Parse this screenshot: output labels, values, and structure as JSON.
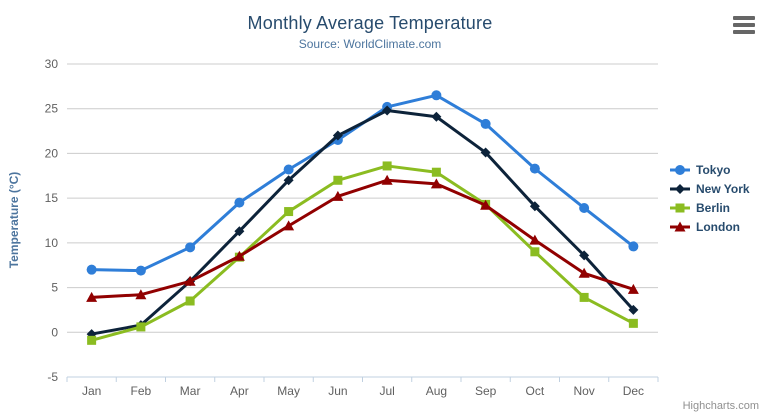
{
  "header": {
    "title": "Monthly Average Temperature",
    "subtitle": "Source: WorldClimate.com"
  },
  "y_axis": {
    "title": "Temperature (°C)",
    "tick_labels": [
      "30",
      "25",
      "20",
      "15",
      "10",
      "5",
      "0",
      "-5"
    ]
  },
  "x_axis": {
    "categories": [
      "Jan",
      "Feb",
      "Mar",
      "Apr",
      "May",
      "Jun",
      "Jul",
      "Aug",
      "Sep",
      "Oct",
      "Nov",
      "Dec"
    ]
  },
  "export_menu": {
    "icon": "hamburger-menu-icon"
  },
  "credits": {
    "label": "Highcharts.com"
  },
  "colors": {
    "title_text": "#274b6d",
    "subtitle_text": "#4d759e",
    "axis_label_text": "#606060",
    "grid_line": "#cccccc",
    "axis_line": "#c0d0e0",
    "background": "#ffffff"
  },
  "chart_data": {
    "type": "line",
    "title": "Monthly Average Temperature",
    "subtitle": "Source: WorldClimate.com",
    "xlabel": "",
    "ylabel": "Temperature (°C)",
    "ylim": [
      -5,
      30
    ],
    "ytick_step": 5,
    "grid": true,
    "legend_position": "right",
    "categories": [
      "Jan",
      "Feb",
      "Mar",
      "Apr",
      "May",
      "Jun",
      "Jul",
      "Aug",
      "Sep",
      "Oct",
      "Nov",
      "Dec"
    ],
    "series": [
      {
        "name": "Tokyo",
        "color": "#2f7ed8",
        "marker": "circle",
        "values": [
          7.0,
          6.9,
          9.5,
          14.5,
          18.2,
          21.5,
          25.2,
          26.5,
          23.3,
          18.3,
          13.9,
          9.6
        ]
      },
      {
        "name": "New York",
        "color": "#0d233a",
        "marker": "diamond",
        "values": [
          -0.2,
          0.8,
          5.7,
          11.3,
          17.0,
          22.0,
          24.8,
          24.1,
          20.1,
          14.1,
          8.6,
          2.5
        ]
      },
      {
        "name": "Berlin",
        "color": "#8bbc21",
        "marker": "square",
        "values": [
          -0.9,
          0.6,
          3.5,
          8.4,
          13.5,
          17.0,
          18.6,
          17.9,
          14.3,
          9.0,
          3.9,
          1.0
        ]
      },
      {
        "name": "London",
        "color": "#910000",
        "marker": "triangle",
        "values": [
          3.9,
          4.2,
          5.7,
          8.5,
          11.9,
          15.2,
          17.0,
          16.6,
          14.2,
          10.3,
          6.6,
          4.8
        ]
      }
    ]
  }
}
